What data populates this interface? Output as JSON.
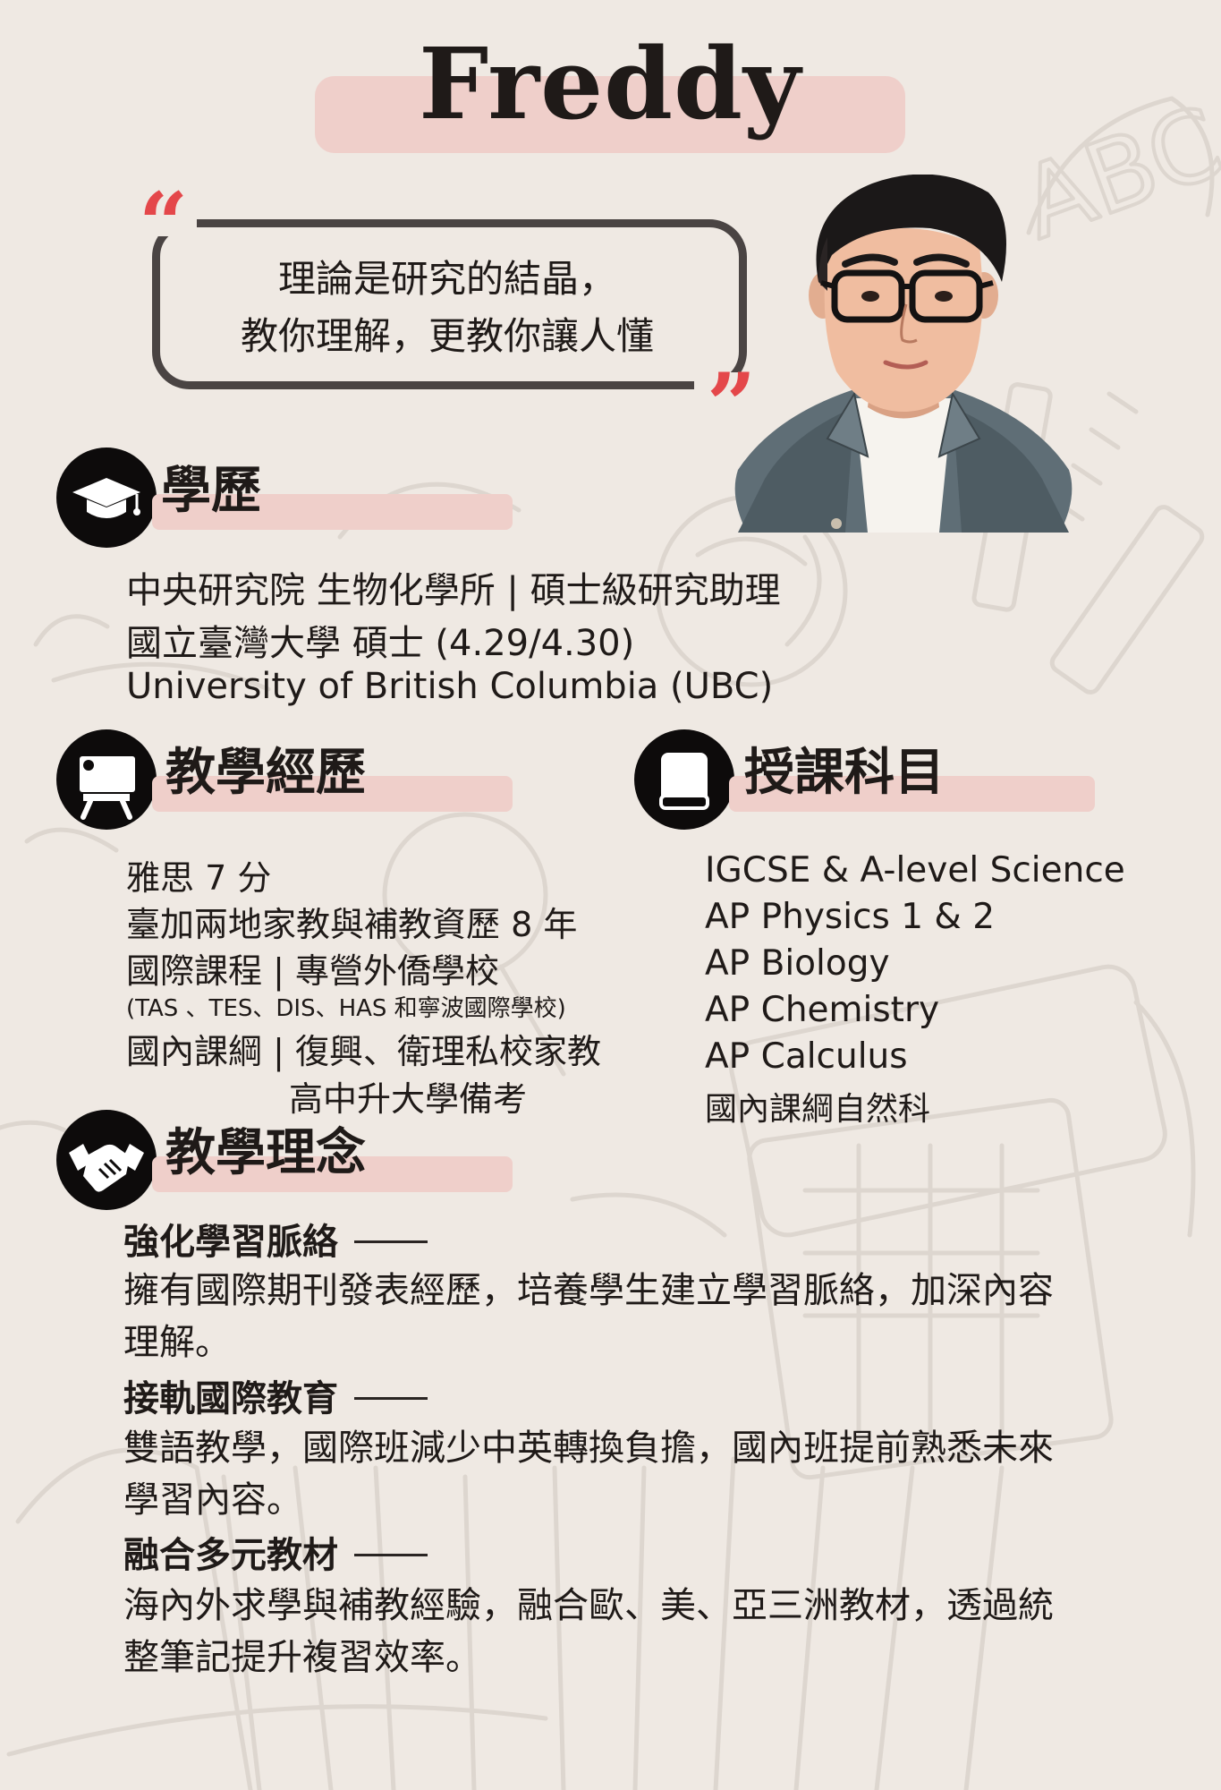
{
  "name": "Freddy",
  "quote": {
    "line1": "理論是研究的結晶，",
    "line2": "教你理解，更教你讓人懂",
    "open_mark": "“",
    "close_mark": "”"
  },
  "education": {
    "title": "學歷",
    "icon": "graduation-cap-icon",
    "items": [
      "中央研究院 生物化學所 | 碩士級研究助理",
      "國立臺灣大學 碩士 (4.29/4.30)",
      "University of British Columbia (UBC)"
    ]
  },
  "experience": {
    "title": "教學經歷",
    "icon": "teacher-board-icon",
    "items": [
      "雅思 7 分",
      "臺加兩地家教與補教資歷 8 年",
      "國際課程 | 專營外僑學校",
      "(TAS 、TES、DIS、HAS 和寧波國際學校)",
      "國內課綱 | 復興、衛理私校家教",
      "高中升大學備考"
    ]
  },
  "subjects": {
    "title": "授課科目",
    "icon": "book-icon",
    "items": [
      "IGCSE & A-level Science",
      "AP Physics 1 & 2",
      "AP Biology",
      "AP Chemistry",
      "AP Calculus",
      "國內課綱自然科"
    ]
  },
  "philosophy": {
    "title": "教學理念",
    "icon": "handshake-icon",
    "points": [
      {
        "heading": "強化學習脈絡",
        "line1": "擁有國際期刊發表經歷，培養學生建立學習脈絡，加深內容",
        "line2": "理解。"
      },
      {
        "heading": "接軌國際教育",
        "line1": "雙語教學，國際班減少中英轉換負擔，國內班提前熟悉未來",
        "line2": "學習內容。"
      },
      {
        "heading": "融合多元教材",
        "line1": "海內外求學與補教經驗，融合歐、美、亞三洲教材，透過統",
        "line2": "整筆記提升複習效率。"
      }
    ]
  },
  "colors": {
    "background": "#efe9e3",
    "highlight": "#efcfca",
    "quote_mark": "#e4474a",
    "frame": "#4a4443"
  }
}
